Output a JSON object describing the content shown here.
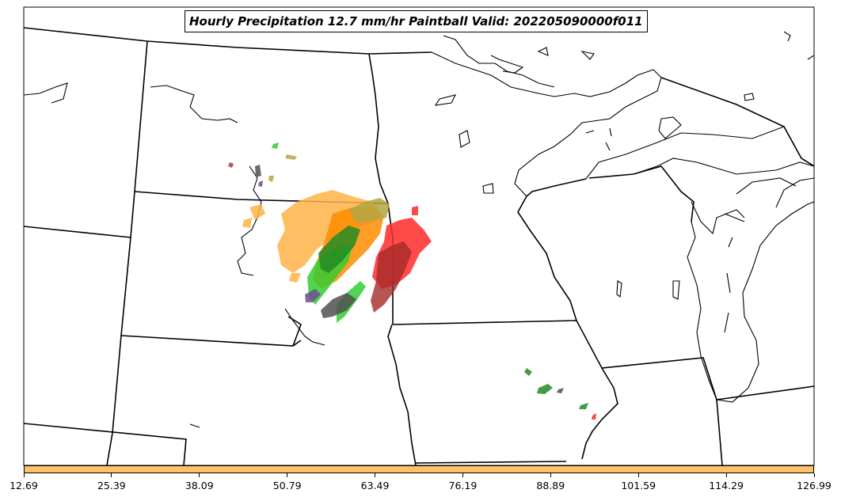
{
  "title": "Hourly Precipitation 12.7 mm/hr Paintball Valid: 202205090000f011",
  "colorbar": {
    "color": "#ffc266",
    "tick_labels": [
      "12.69",
      "25.39",
      "38.09",
      "50.79",
      "63.49",
      "76.19",
      "88.89",
      "101.59",
      "114.29",
      "126.99"
    ]
  },
  "member_colors": [
    "#ffb347",
    "#ff8c00",
    "#32cd32",
    "#228b22",
    "#ff2a2a",
    "#a52a2a",
    "#b5a642",
    "#6b4f8f",
    "#505050"
  ]
}
